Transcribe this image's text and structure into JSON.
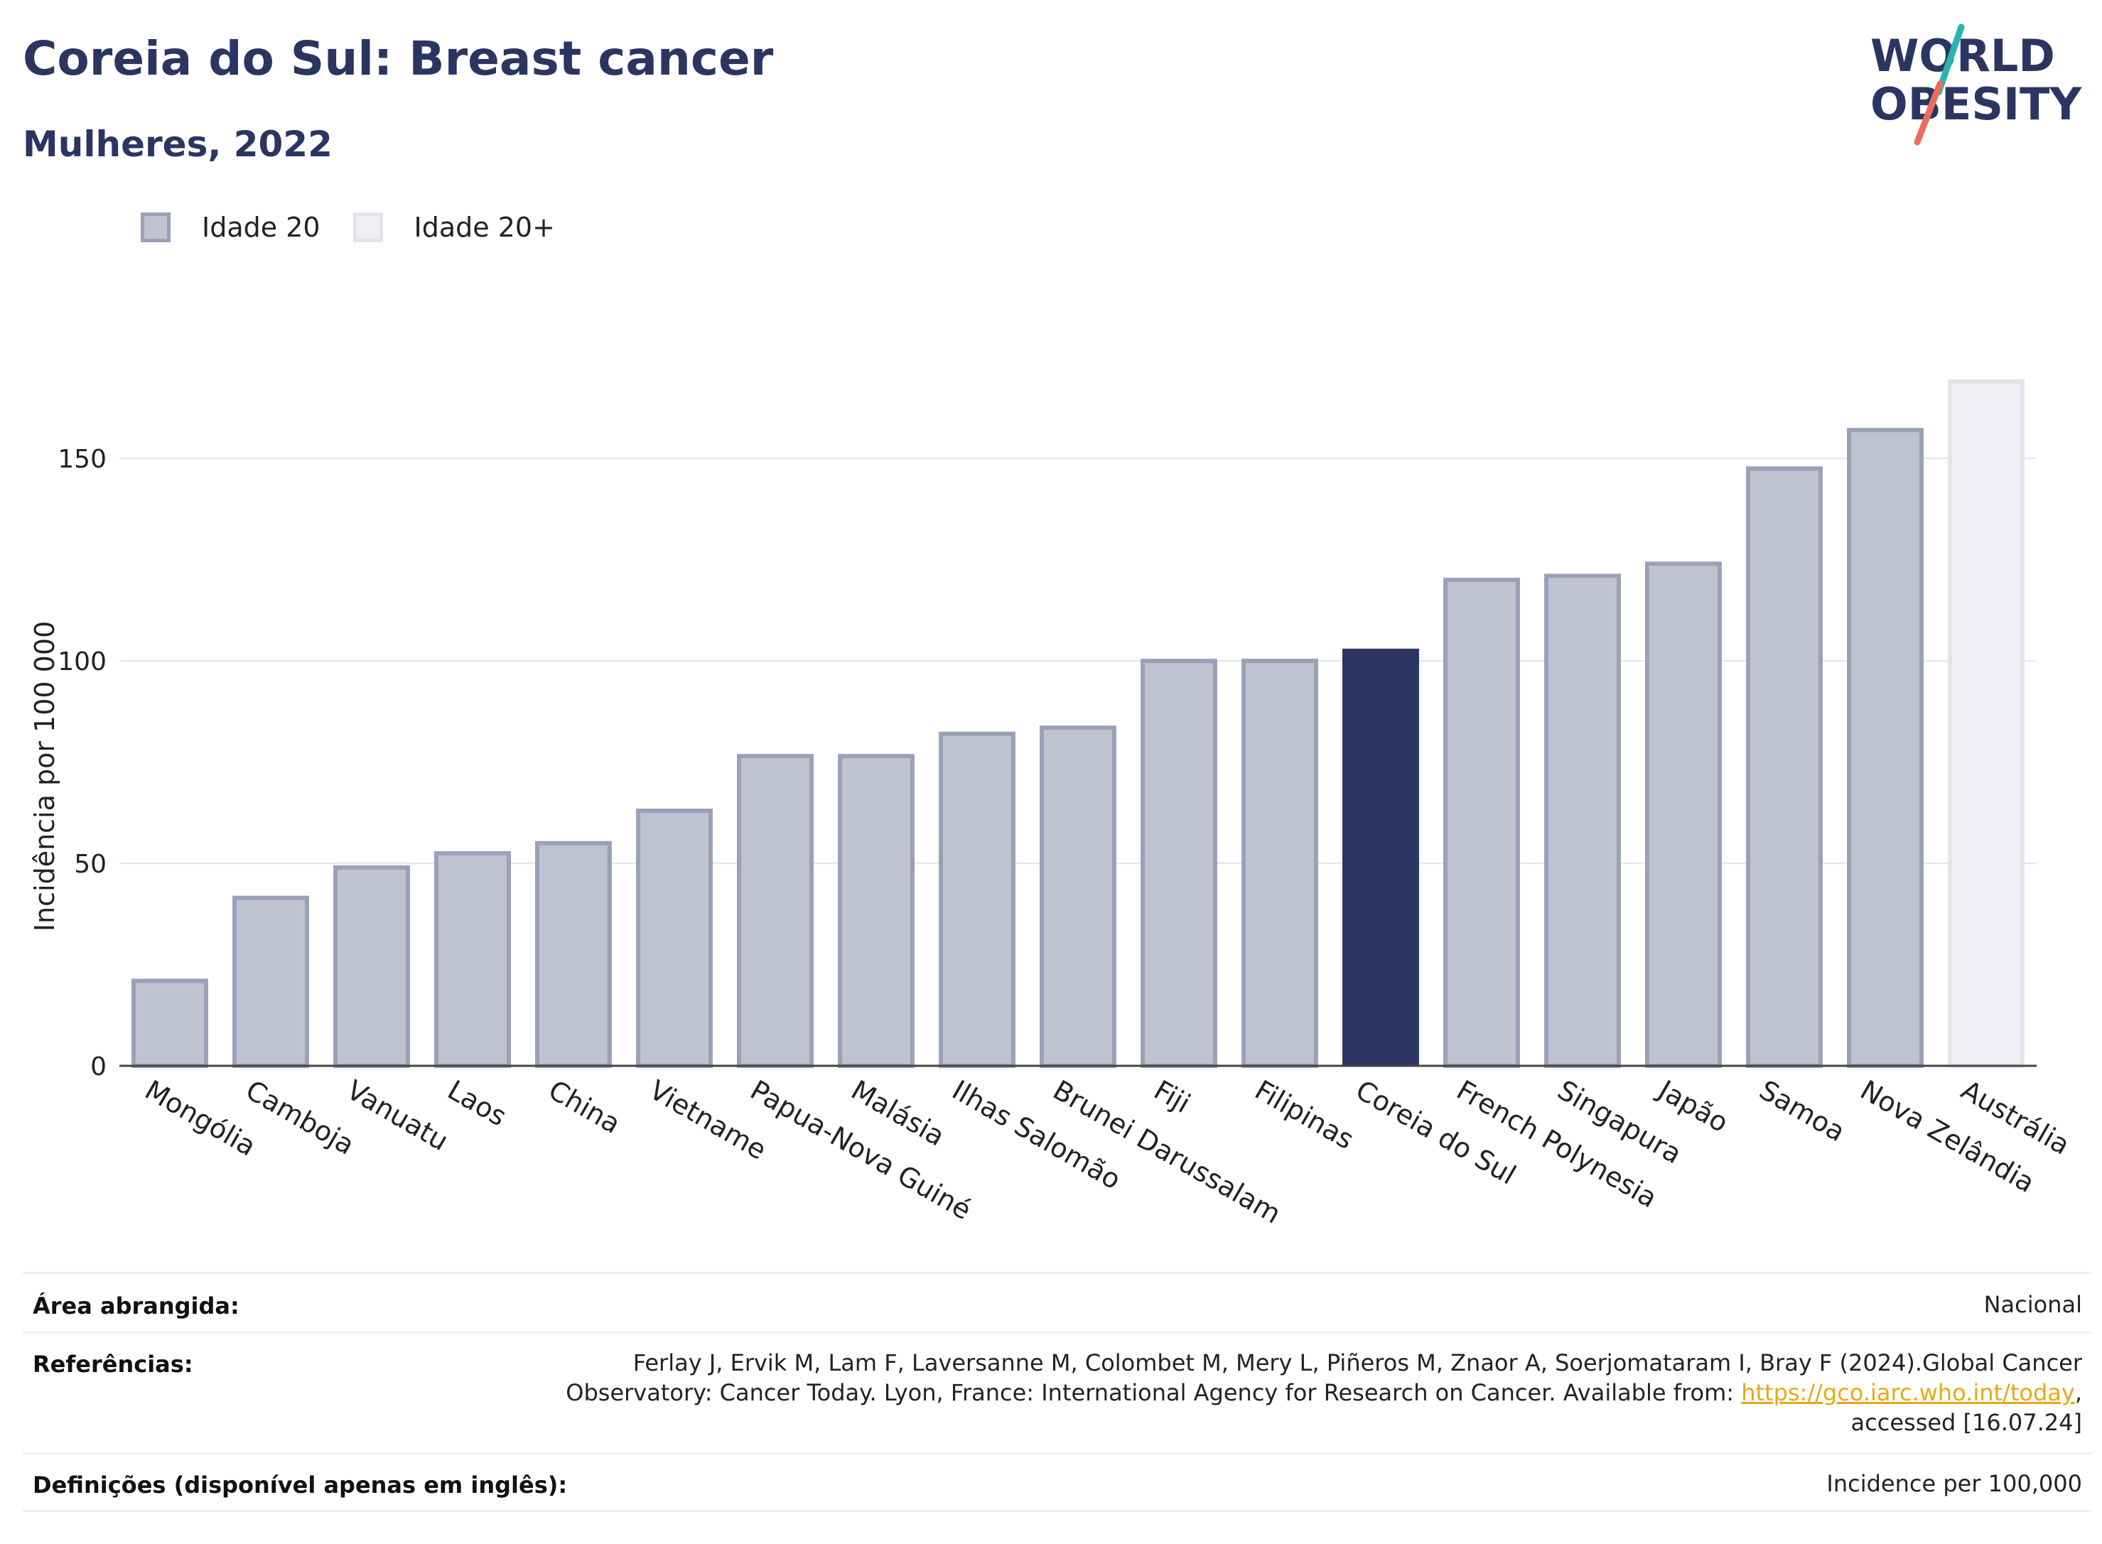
{
  "header": {
    "title": "Coreia do Sul: Breast cancer",
    "subtitle": "Mulheres, 2022"
  },
  "logo": {
    "line1": "WORLD",
    "line2": "OBESITY",
    "icon": "world-obesity-logo"
  },
  "legend": [
    {
      "label": "Idade 20",
      "color": "#bfc3d0"
    },
    {
      "label": "Idade 20+",
      "color": "#eeeff3"
    }
  ],
  "chart_data": {
    "type": "bar",
    "ylabel": "Incidência por 100 000",
    "ylim": [
      0,
      180
    ],
    "yticks": [
      0,
      50,
      100,
      150
    ],
    "grid": true,
    "legend_position": "top-left",
    "categories": [
      "Mongólia",
      "Camboja",
      "Vanuatu",
      "Laos",
      "China",
      "Vietname",
      "Papua-Nova Guiné",
      "Malásia",
      "Ilhas Salomão",
      "Brunei Darussalam",
      "Fiji",
      "Filipinas",
      "Coreia do Sul",
      "French Polynesia",
      "Singapura",
      "Japão",
      "Samoa",
      "Nova Zelândia",
      "Austrália"
    ],
    "values": [
      21.5,
      42,
      49.5,
      53,
      55.5,
      63.5,
      77,
      77,
      82.5,
      84,
      100.5,
      100.5,
      103,
      120.5,
      121.5,
      124.5,
      148,
      157.5,
      169.5
    ],
    "groups": [
      "Idade 20",
      "Idade 20",
      "Idade 20",
      "Idade 20",
      "Idade 20",
      "Idade 20",
      "Idade 20",
      "Idade 20",
      "Idade 20",
      "Idade 20",
      "Idade 20",
      "Idade 20",
      "Idade 20",
      "Idade 20",
      "Idade 20",
      "Idade 20",
      "Idade 20",
      "Idade 20",
      "Idade 20+"
    ],
    "highlight": "Coreia do Sul",
    "colors": {
      "default_fill": "#bfc3d0",
      "default_stroke": "#9aa1b7",
      "highlight_fill": "#2b3561",
      "age20plus_fill": "#eeeff3",
      "age20plus_stroke": "#e2e4ea"
    }
  },
  "info": {
    "area_label": "Área abrangida:",
    "area_value": "Nacional",
    "refs_label": "Referências:",
    "refs_line1": "Ferlay J, Ervik M, Lam F, Laversanne M, Colombet M, Mery L, Piñeros M, Znaor A, Soerjomataram I, Bray F (2024).Global Cancer",
    "refs_line2_pre": "Observatory: Cancer Today. Lyon, France: International Agency for Research on Cancer. Available from: ",
    "refs_link": "https://gco.iarc.who.int/today",
    "refs_line2_post": ",",
    "refs_line3": "accessed [16.07.24]",
    "defs_label": "Definições (disponível apenas em inglês):",
    "defs_value": "Incidence per 100,000"
  }
}
